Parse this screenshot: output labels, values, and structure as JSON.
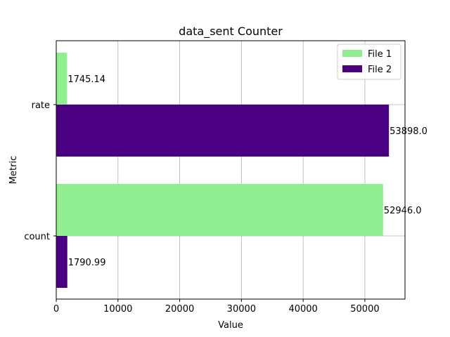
{
  "chart_data": {
    "type": "bar",
    "orientation": "horizontal",
    "title": "data_sent Counter",
    "xlabel": "Value",
    "ylabel": "Metric",
    "categories": [
      "count",
      "rate"
    ],
    "series": [
      {
        "name": "File 1",
        "color": "#90ee90",
        "values": [
          52946.0,
          1745.14
        ],
        "labels": [
          "52946.0",
          "1745.14"
        ]
      },
      {
        "name": "File 2",
        "color": "#4b0082",
        "values": [
          1790.99,
          53898.0
        ],
        "labels": [
          "1790.99",
          "53898.0"
        ]
      }
    ],
    "xlim": [
      0,
      56500
    ],
    "xticks": [
      0,
      10000,
      20000,
      30000,
      40000,
      50000
    ],
    "grid": true,
    "legend_position": "top-right"
  }
}
